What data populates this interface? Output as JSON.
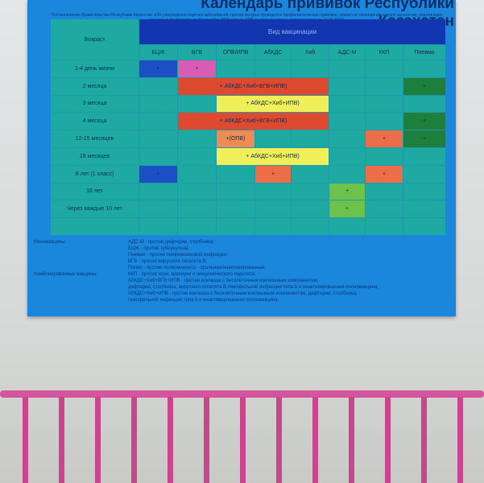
{
  "poster": {
    "title": "Календарь прививок Республики Казахстан",
    "subtitle": "Постановление Правительства Республики Казахстан «Об утверждении перечня заболеваний, против которых проводятся профилактические прививки, правил их проведения и групп населения, подлежащих плановым прививкам» от 30 декабря 2009 года № 2295 (с изменениями и дополнениями от 13.07.2015)",
    "age_header": "Возраст",
    "vaccines_header": "Вид вакцинации",
    "columns": [
      "БЦЖ",
      "ВГВ",
      "ОПВ/ИПВ",
      "АбКДС",
      "Хиб",
      "АДС-М",
      "ККП",
      "Пневмо"
    ],
    "rows": [
      {
        "age": "1-4 день жизни",
        "cells": [
          {
            "col": 1,
            "span": 1,
            "text": "+",
            "color": "#1b4fc4"
          },
          {
            "col": 2,
            "span": 1,
            "text": "+",
            "color": "#d95bb2"
          }
        ]
      },
      {
        "age": "2 месяца",
        "cells": [
          {
            "col": 2,
            "span": 4,
            "text": "+ АбКДС+Хиб+ВГВ+ИПВ)",
            "color": "#de4a30"
          },
          {
            "col": 8,
            "span": 1,
            "text": "+",
            "color": "#1e7f3c"
          }
        ]
      },
      {
        "age": "3 месяца",
        "cells": [
          {
            "col": 3,
            "span": 3,
            "text": "+ АбКДС+Хиб+ИПВ)",
            "color": "#f0ef5a"
          }
        ]
      },
      {
        "age": "4 месяца",
        "cells": [
          {
            "col": 2,
            "span": 4,
            "text": "+ АбКДС+Хиб+ВГВ+ИПВ)",
            "color": "#de4a30"
          },
          {
            "col": 8,
            "span": 1,
            "text": "+",
            "color": "#1e7f3c"
          }
        ]
      },
      {
        "age": "12-15 месяцев",
        "cells": [
          {
            "col": 3,
            "span": 1,
            "text": "+(ОПВ)",
            "color": "#ef8c55"
          },
          {
            "col": 7,
            "span": 1,
            "text": "+",
            "color": "#ec6e48"
          },
          {
            "col": 8,
            "span": 1,
            "text": "+",
            "color": "#1e7f3c"
          }
        ]
      },
      {
        "age": "18 месяцев",
        "cells": [
          {
            "col": 3,
            "span": 3,
            "text": "+ АбКДС+Хиб+ИПВ)",
            "color": "#f0ef5a"
          }
        ]
      },
      {
        "age": "6 лет (1 класс)",
        "cells": [
          {
            "col": 1,
            "span": 1,
            "text": "+",
            "color": "#1b4fc4"
          },
          {
            "col": 4,
            "span": 1,
            "text": "+",
            "color": "#ec6e48"
          },
          {
            "col": 7,
            "span": 1,
            "text": "+",
            "color": "#ec6e48"
          }
        ]
      },
      {
        "age": "16 лет",
        "cells": [
          {
            "col": 6,
            "span": 1,
            "text": "+",
            "color": "#6cc24a"
          }
        ]
      },
      {
        "age": "Через каждые 10 лет",
        "cells": [
          {
            "col": 6,
            "span": 1,
            "text": "+",
            "color": "#6cc24a"
          }
        ]
      }
    ],
    "mono_label": "Моновакцины:",
    "mono": [
      "АДС-М - против дифтерии, столбняка;",
      "БЦЖ - против туберкулеза;",
      "Пневмо - против пневмококковой инфекции;",
      "ВГВ - против вирусного гепатита В;",
      "Полио - против полиомиелита - оральная/инактивированная;"
    ],
    "combo_label": "Комбинированные вакцины:",
    "combo": [
      "ККП - против кори, краснухи и эпидемического паротита;",
      "АбКДС+Хиб+ВГВ+ИПВ - против коклюша с бесклеточным коклюшным компонентом,",
      "дифтерии, столбняка, вирусного гепатита В,гемофильной инфекции типа b и инактивированная полиовакцина;",
      "АбКДС+Хиб+ИПВ - против коклюша с бесклеточным коклюшным компонентом, дифтерии, столбняка,",
      "гемофильной инфекции типа b и инактивированная полиовакцина."
    ]
  }
}
